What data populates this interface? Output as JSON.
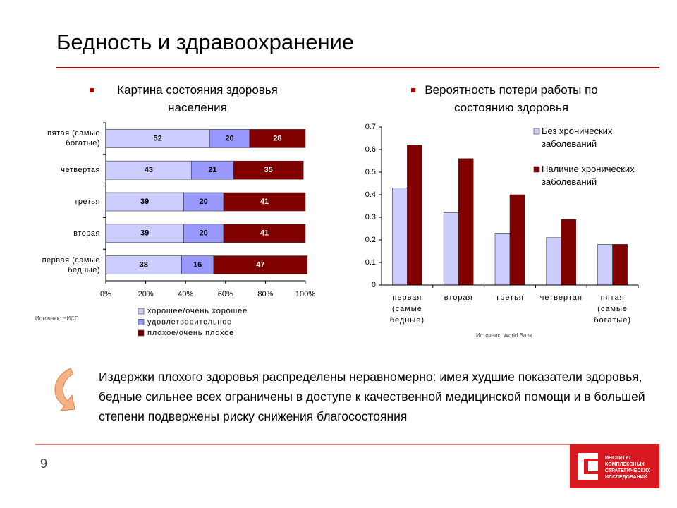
{
  "title": "Бедность и здравоохранение",
  "chart_data": [
    {
      "type": "stacked_barh",
      "title": "Картина состояния здоровья населения",
      "categories": [
        "пятая (самые богатые)",
        "четвертая",
        "третья",
        "вторая",
        "первая (самые бедные)"
      ],
      "series": [
        {
          "name": "хорошее/очень хорошее",
          "color": "#ccccff",
          "values": [
            52,
            43,
            39,
            39,
            38
          ]
        },
        {
          "name": "удовлетворительное",
          "color": "#9999ff",
          "values": [
            20,
            21,
            20,
            20,
            16
          ]
        },
        {
          "name": "плохое/очень плохое",
          "color": "#800000",
          "values": [
            28,
            35,
            41,
            41,
            47
          ]
        }
      ],
      "xlim": [
        0,
        100
      ],
      "xticks": [
        {
          "value": 0,
          "label": "0%"
        },
        {
          "value": 20,
          "label": "20%"
        },
        {
          "value": 40,
          "label": "40%"
        },
        {
          "value": 60,
          "label": "60%"
        },
        {
          "value": 80,
          "label": "80%"
        },
        {
          "value": 100,
          "label": "100%"
        }
      ],
      "source": "Источник: НИСП"
    },
    {
      "type": "bar",
      "title": "Вероятность потери работы по состоянию здоровья",
      "categories": [
        "первая (самые бедные)",
        "вторая",
        "третья",
        "четвертая",
        "пятая (самые богатые)"
      ],
      "series": [
        {
          "name": "Без хронических заболеваний",
          "color": "#ccccff",
          "values": [
            0.43,
            0.32,
            0.23,
            0.21,
            0.18
          ]
        },
        {
          "name": "Наличие хронических заболеваний",
          "color": "#800000",
          "values": [
            0.62,
            0.56,
            0.4,
            0.29,
            0.18
          ]
        }
      ],
      "ylim": [
        0,
        0.7
      ],
      "yticks": [
        0,
        0.1,
        0.2,
        0.3,
        0.4,
        0.5,
        0.6,
        0.7
      ],
      "source": "Источник: World Bank"
    }
  ],
  "note": "Издержки плохого здоровья распределены неравномерно: имея худшие показатели здоровья, бедные сильнее всех ограничены в доступе к качественной медицинской помощи и в большей степени подвержены риску снижения благосостояния",
  "page_number": "9",
  "logo": {
    "lines": [
      "ИНСТИТУТ",
      "КОМПЛЕКСНЫХ",
      "СТРАТЕГИЧЕСКИХ",
      "ИССЛЕДОВАНИЙ"
    ]
  }
}
